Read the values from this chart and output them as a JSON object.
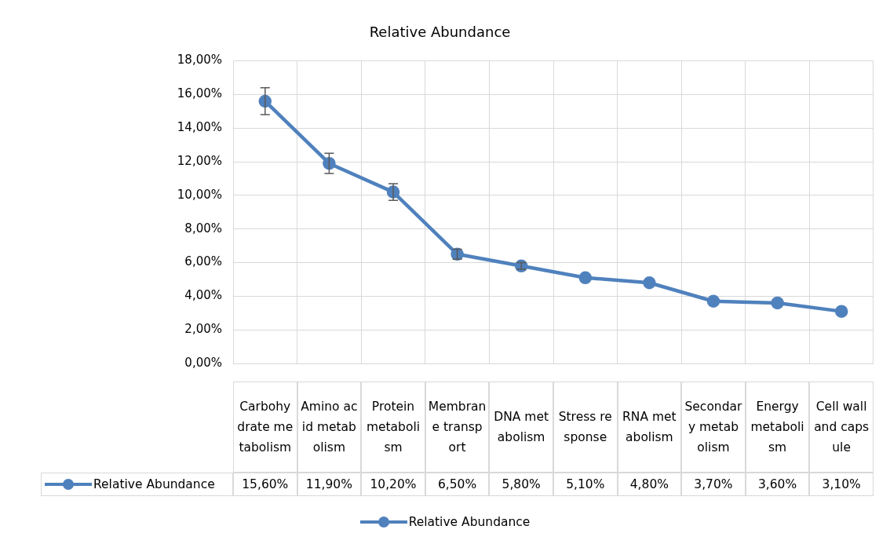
{
  "chart_data": {
    "type": "line",
    "title": "Relative Abundance",
    "categories": [
      "Carbohydrate metabolism",
      "Amino acid metabolism",
      "Protein metabolism",
      "Membrane transport",
      "DNA metabolism",
      "Stress response",
      "RNA metabolism",
      "Secondary metabolism",
      "Energy metabolism",
      "Cell wall and capsule"
    ],
    "series": [
      {
        "name": "Relative Abundance",
        "color": "#4f81bd",
        "values": [
          15.6,
          11.9,
          10.2,
          6.5,
          5.8,
          5.1,
          4.8,
          3.7,
          3.6,
          3.1
        ],
        "errors": [
          0.8,
          0.6,
          0.5,
          0.3,
          0.2,
          null,
          null,
          null,
          null,
          null
        ],
        "value_labels": [
          "15,60%",
          "11,90%",
          "10,20%",
          "6,50%",
          "5,80%",
          "5,10%",
          "4,80%",
          "3,70%",
          "3,60%",
          "3,10%"
        ]
      }
    ],
    "ylim": [
      0,
      18
    ],
    "yticks": [
      {
        "value": 0,
        "label": "0,00%"
      },
      {
        "value": 2,
        "label": "2,00%"
      },
      {
        "value": 4,
        "label": "4,00%"
      },
      {
        "value": 6,
        "label": "6,00%"
      },
      {
        "value": 8,
        "label": "8,00%"
      },
      {
        "value": 10,
        "label": "10,00%"
      },
      {
        "value": 12,
        "label": "12,00%"
      },
      {
        "value": 14,
        "label": "14,00%"
      },
      {
        "value": 16,
        "label": "16,00%"
      },
      {
        "value": 18,
        "label": "18,00%"
      }
    ],
    "grid": true,
    "legend": "bottom",
    "marker": "circle",
    "line_style": "solid"
  }
}
